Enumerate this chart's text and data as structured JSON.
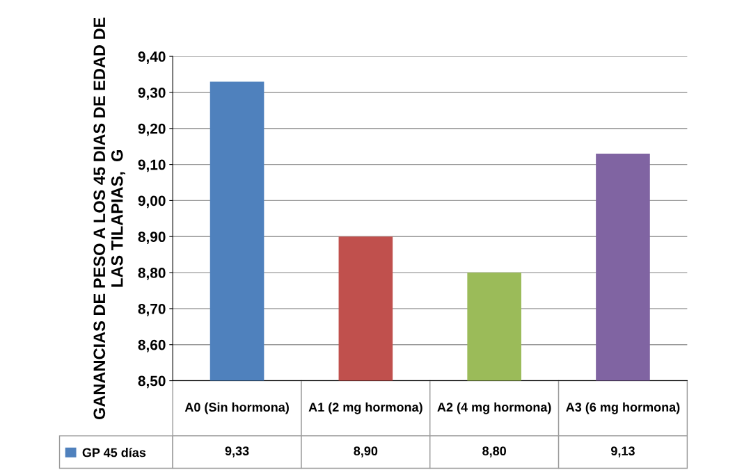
{
  "chart_data": {
    "type": "bar",
    "ylabel": "GANANCIAS DE PESO A LOS 45 DIAS DE EDAD DE LAS TILAPIAS,  G",
    "categories": [
      "A0 (Sin hormona)",
      "A1 (2 mg hormona)",
      "A2 (4 mg hormona)",
      "A3 (6 mg hormona)"
    ],
    "series": [
      {
        "name": "GP 45 días",
        "color": "#4f81bd",
        "colors": [
          "#4f81bd",
          "#c0504d",
          "#9bbb59",
          "#8064a2"
        ],
        "values": [
          9.33,
          8.9,
          8.8,
          9.13
        ],
        "value_labels": [
          "9,33",
          "8,90",
          "8,80",
          "9,13"
        ]
      }
    ],
    "ylim": [
      8.5,
      9.4
    ],
    "yticks": [
      {
        "value": 8.5,
        "label": "8,50"
      },
      {
        "value": 8.6,
        "label": "8,60"
      },
      {
        "value": 8.7,
        "label": "8,70"
      },
      {
        "value": 8.8,
        "label": "8,80"
      },
      {
        "value": 8.9,
        "label": "8,90"
      },
      {
        "value": 9.0,
        "label": "9,00"
      },
      {
        "value": 9.1,
        "label": "9,10"
      },
      {
        "value": 9.2,
        "label": "9,20"
      },
      {
        "value": 9.3,
        "label": "9,30"
      },
      {
        "value": 9.4,
        "label": "9,40"
      }
    ],
    "grid": "y",
    "legend": "bottom left"
  }
}
